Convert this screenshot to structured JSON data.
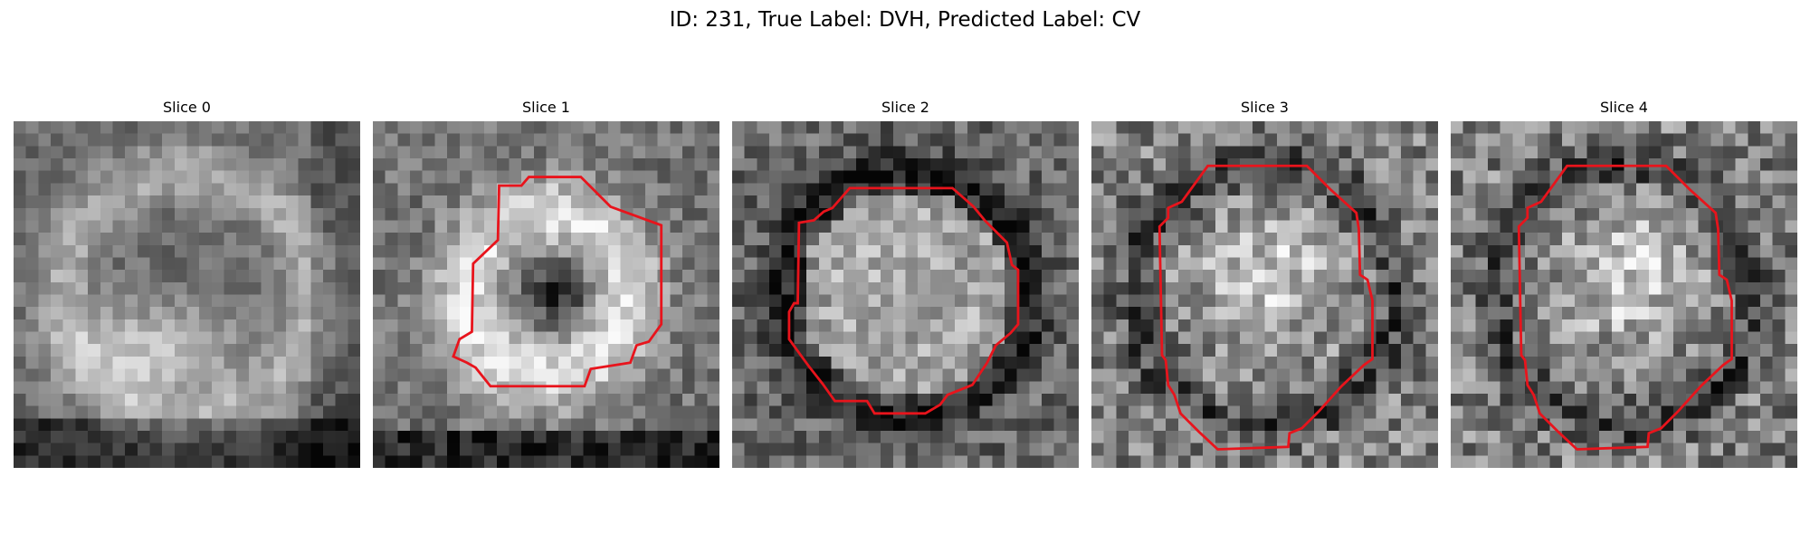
{
  "figure": {
    "title": "ID: 231, True Label: DVH, Predicted Label: CV",
    "contour_color": "#e8141c",
    "grid_cells_per_side": 28
  },
  "slices": [
    {
      "title": "Slice 0",
      "has_contour": false
    },
    {
      "title": "Slice 1",
      "has_contour": true
    },
    {
      "title": "Slice 2",
      "has_contour": true
    },
    {
      "title": "Slice 3",
      "has_contour": true
    },
    {
      "title": "Slice 4",
      "has_contour": true
    }
  ]
}
